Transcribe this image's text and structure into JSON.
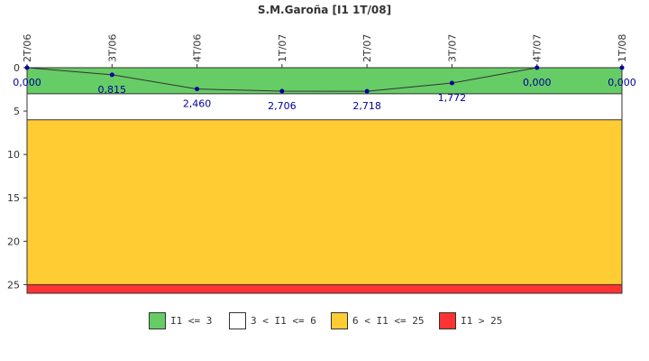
{
  "chart_data": {
    "type": "line",
    "title": "S.M.Garoña [I1 1T/08]",
    "xlabel": "",
    "ylabel": "",
    "categories": [
      "2T/06",
      "3T/06",
      "4T/06",
      "1T/07",
      "2T/07",
      "3T/07",
      "4T/07",
      "1T/08"
    ],
    "values": [
      0.0,
      0.815,
      2.46,
      2.706,
      2.718,
      1.772,
      0.0,
      0.0
    ],
    "value_labels": [
      "0,000",
      "0,815",
      "2,460",
      "2,706",
      "2,718",
      "1,772",
      "0,000",
      "0,000"
    ],
    "ylim": [
      0,
      26
    ],
    "y_inverted": true,
    "y_ticks": [
      0,
      5,
      10,
      15,
      20,
      25
    ],
    "x_ticks_position": "top",
    "grid": false,
    "line_color": "#333333",
    "marker_color": "#000099",
    "bands": [
      {
        "from": 0,
        "to": 3,
        "color": "#66cc66"
      },
      {
        "from": 3,
        "to": 6,
        "color": "#ffffff"
      },
      {
        "from": 6,
        "to": 25,
        "color": "#ffcc33"
      },
      {
        "from": 25,
        "to": 26,
        "color": "#ff3333"
      }
    ],
    "legend_position": "bottom"
  },
  "legend": [
    {
      "label": "I1 <= 3",
      "color": "#66cc66"
    },
    {
      "label": "3 < I1 <= 6",
      "color": "#ffffff"
    },
    {
      "label": "6 < I1 <= 25",
      "color": "#ffcc33"
    },
    {
      "label": "I1 > 25",
      "color": "#ff3333"
    }
  ]
}
